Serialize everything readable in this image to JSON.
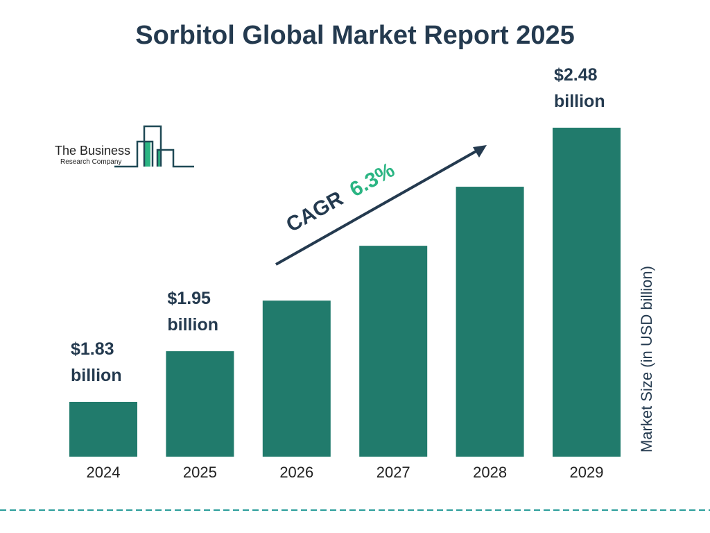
{
  "title": "Sorbitol Global Market Report 2025",
  "logo": {
    "line1": "The Business",
    "line2": "Research Company"
  },
  "chart_data": {
    "type": "bar",
    "categories": [
      "2024",
      "2025",
      "2026",
      "2027",
      "2028",
      "2029"
    ],
    "values": [
      1.83,
      1.95,
      2.07,
      2.2,
      2.34,
      2.48
    ],
    "data_labels": [
      {
        "index": 0,
        "line1": "$1.83",
        "line2": "billion"
      },
      {
        "index": 1,
        "line1": "$1.95",
        "line2": "billion"
      },
      {
        "index": 5,
        "line1": "$2.48",
        "line2": "billion"
      }
    ],
    "ylabel": "Market Size (in USD billion)",
    "xlabel": "",
    "annotation": {
      "label": "CAGR",
      "value": "6.3%"
    },
    "grid": false,
    "colors": {
      "bar": "#217b6c",
      "text": "#243a4f",
      "cagr": "#2bb583",
      "divider": "#2a9d9a"
    }
  }
}
